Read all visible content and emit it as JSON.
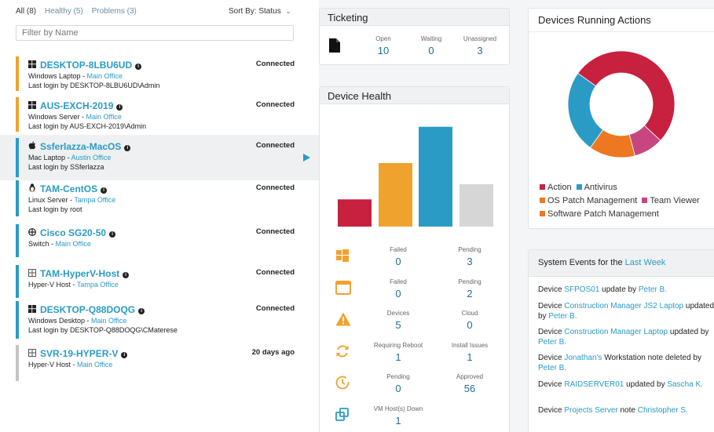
{
  "filters": {
    "all": "All (8)",
    "healthy": "Healthy (5)",
    "problems": "Problems (3)"
  },
  "sort": {
    "label": "Sort By: Status"
  },
  "search": {
    "placeholder": "Filter by Name"
  },
  "devices": [
    {
      "name": "DESKTOP-8LBU6UD",
      "type": "Windows Laptop - ",
      "location": "Main Office",
      "login": "Last login by DESKTOP-8LBU6UD\\Admin",
      "status": "Connected",
      "color": "#f0a22e",
      "os": "windows-icon"
    },
    {
      "name": "AUS-EXCH-2019",
      "type": "Windows Server - ",
      "location": "Main Office",
      "login": "Last login by AUS-EXCH-2019\\Admin",
      "status": "Connected",
      "color": "#f0a22e",
      "os": "windows-icon"
    },
    {
      "name": "Ssferlazza-MacOS",
      "type": "Mac Laptop - ",
      "location": "Austin Office",
      "login": "Last login by SSferlazza",
      "status": "Connected",
      "color": "#2a9bc4",
      "os": "apple-icon"
    },
    {
      "name": "TAM-CentOS",
      "type": "Linux Server - ",
      "location": "Tampa Office",
      "login": "Last login by root",
      "status": "Connected",
      "color": "#2a9bc4",
      "os": "linux-icon"
    },
    {
      "name": "Cisco SG20-50",
      "type": "Switch - ",
      "location": "Main Office",
      "login": "",
      "status": "Connected",
      "color": "#2a9bc4",
      "os": "network-icon"
    },
    {
      "name": "TAM-HyperV-Host",
      "type": "Hyper-V Host - ",
      "location": "Tampa Office",
      "login": "",
      "status": "Connected",
      "color": "#2a9bc4",
      "os": "hyperv-icon"
    },
    {
      "name": "DESKTOP-Q88DOQG",
      "type": "Windows Desktop - ",
      "location": "Main Office",
      "login": "Last login by DESKTOP-Q88DOQG\\CMaterese",
      "status": "Connected",
      "color": "#2a9bc4",
      "os": "windows-icon"
    },
    {
      "name": "SVR-19-HYPER-V",
      "type": "Hyper-V Host - ",
      "location": "Main Office",
      "login": "",
      "status": "20 days ago",
      "color": "#c4c4c4",
      "os": "hyperv-icon"
    }
  ],
  "ticketing": {
    "title": "Ticketing",
    "open": {
      "label": "Open",
      "value": "10"
    },
    "waiting": {
      "label": "Waiting",
      "value": "0"
    },
    "unassigned": {
      "label": "Unassigned",
      "value": "3"
    }
  },
  "health": {
    "title": "Device Health",
    "rows": [
      {
        "icon": "windows-update-icon",
        "a_label": "Failed",
        "a_value": "0",
        "b_label": "Pending",
        "b_value": "3"
      },
      {
        "icon": "window-icon",
        "a_label": "Failed",
        "a_value": "0",
        "b_label": "Pending",
        "b_value": "2"
      },
      {
        "icon": "warning-icon",
        "a_label": "Devices",
        "a_value": "5",
        "b_label": "Cloud",
        "b_value": "0"
      },
      {
        "icon": "reboot-icon",
        "a_label": "Requiring Reboot",
        "a_value": "1",
        "b_label": "Install Issues",
        "b_value": "1"
      },
      {
        "icon": "clock-icon",
        "a_label": "Pending",
        "a_value": "0",
        "b_label": "Approved",
        "b_value": "56"
      },
      {
        "icon": "vm-host-icon",
        "a_label": "VM Host(s) Down",
        "a_value": "1"
      }
    ]
  },
  "chart_data": [
    {
      "type": "bar",
      "categories": [
        "",
        "",
        "",
        ""
      ],
      "values": [
        18,
        42,
        66,
        28
      ],
      "colors": [
        "#c8203f",
        "#f0a22e",
        "#2a9bc4",
        "#d6d6d6"
      ],
      "ylim": [
        0,
        70
      ],
      "grid": false
    },
    {
      "type": "pie",
      "title": "Devices Running Actions",
      "series": [
        {
          "name": "Action",
          "value": 52,
          "color": "#c8203f"
        },
        {
          "name": "Team Viewer",
          "value": 9,
          "color": "#c8467f"
        },
        {
          "name": "OS Patch Management",
          "value": 14,
          "color": "#ee7722"
        },
        {
          "name": "Antivirus",
          "value": 25,
          "color": "#2a9bc4"
        }
      ],
      "legend": [
        {
          "name": "Action",
          "color": "#c8203f"
        },
        {
          "name": "Antivirus",
          "color": "#2a9bc4"
        },
        {
          "name": "OS Patch Management",
          "color": "#ee7722"
        },
        {
          "name": "Team Viewer",
          "color": "#c8467f"
        },
        {
          "name": "Software Patch Management",
          "color": "#ee7722"
        }
      ]
    }
  ],
  "events": {
    "title_prefix": "System Events for the ",
    "title_link": "Last Week",
    "items": [
      [
        {
          "t": "Device "
        },
        {
          "t": "SFPOS01",
          "link": true
        },
        {
          "t": " update by "
        },
        {
          "t": "Peter B.",
          "link": true
        }
      ],
      [
        {
          "t": "Device "
        },
        {
          "t": "Construction Manager JS2 Laptop",
          "link": true
        },
        {
          "t": " updated by "
        },
        {
          "t": "Peter B.",
          "link": true
        }
      ],
      [
        {
          "t": "Device "
        },
        {
          "t": "Construction Manager Laptop",
          "link": true
        },
        {
          "t": " updated by "
        },
        {
          "t": "Peter B.",
          "link": true
        }
      ],
      [
        {
          "t": "Device "
        },
        {
          "t": "Jonathan's",
          "link": true
        },
        {
          "t": " Workstation note deleted by "
        },
        {
          "t": "Peter B.",
          "link": true
        }
      ],
      [
        {
          "t": "Device "
        },
        {
          "t": "RAIDSERVER01",
          "link": true
        },
        {
          "t": " updated by "
        },
        {
          "t": "Sascha K.",
          "link": true
        }
      ],
      [
        {
          "t": "Device "
        },
        {
          "t": "Projects Server",
          "link": true
        },
        {
          "t": " note "
        },
        {
          "t": "Christopher S.",
          "link": true
        }
      ]
    ]
  }
}
